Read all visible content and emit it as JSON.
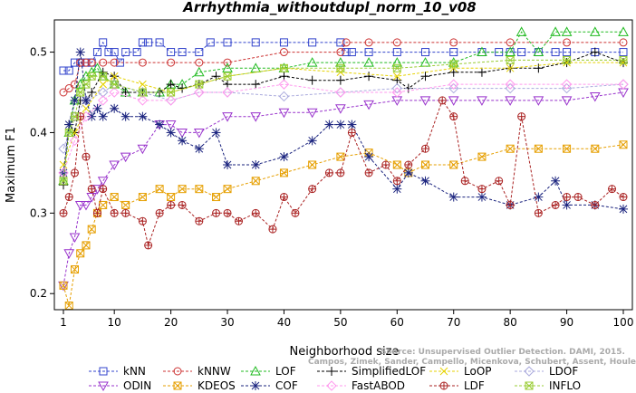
{
  "chart_data": {
    "type": "line",
    "title": "Arrhythmia_withoutdupl_norm_10_v08",
    "xlabel": "Neighborhood size",
    "ylabel": "Maximum F1",
    "xlim": [
      1,
      100
    ],
    "ylim": [
      0.18,
      0.54
    ],
    "xticks": [
      1,
      10,
      20,
      30,
      40,
      50,
      60,
      70,
      80,
      90,
      100
    ],
    "yticks": [
      0.2,
      0.3,
      0.4,
      0.5
    ],
    "ytick_labels": [
      "0.2",
      "0.3",
      "0.4",
      "0.5"
    ],
    "grid": false,
    "legend_position": "bottom",
    "watermark": [
      "Source: Unsupervised Outlier Detection. DAMI, 2015.",
      "Campos, Zimek, Sander, Campello, Micenkova, Schubert, Assent, Houle"
    ],
    "series": [
      {
        "name": "kNN",
        "color": "#3344cc",
        "marker": "square",
        "x": [
          1,
          2,
          3,
          4,
          5,
          6,
          7,
          8,
          9,
          10,
          11,
          12,
          14,
          15,
          16,
          18,
          20,
          22,
          25,
          27,
          30,
          35,
          40,
          45,
          50,
          51,
          52,
          55,
          60,
          65,
          70,
          75,
          78,
          80,
          82,
          85,
          88,
          90,
          95,
          100
        ],
        "y": [
          0.477,
          0.477,
          0.487,
          0.487,
          0.487,
          0.487,
          0.5,
          0.512,
          0.5,
          0.5,
          0.487,
          0.5,
          0.5,
          0.512,
          0.512,
          0.512,
          0.5,
          0.5,
          0.5,
          0.512,
          0.512,
          0.512,
          0.512,
          0.512,
          0.512,
          0.5,
          0.5,
          0.5,
          0.5,
          0.5,
          0.5,
          0.5,
          0.5,
          0.5,
          0.5,
          0.5,
          0.5,
          0.5,
          0.5,
          0.5
        ]
      },
      {
        "name": "kNNW",
        "color": "#cc3333",
        "marker": "circle",
        "x": [
          1,
          2,
          3,
          4,
          5,
          6,
          8,
          10,
          15,
          20,
          25,
          30,
          40,
          50,
          51,
          55,
          60,
          70,
          80,
          90,
          100
        ],
        "y": [
          0.45,
          0.455,
          0.46,
          0.487,
          0.487,
          0.487,
          0.487,
          0.487,
          0.487,
          0.487,
          0.487,
          0.487,
          0.5,
          0.5,
          0.512,
          0.512,
          0.512,
          0.512,
          0.512,
          0.512,
          0.512
        ]
      },
      {
        "name": "LOF",
        "color": "#22bb22",
        "marker": "triangle",
        "x": [
          1,
          2,
          3,
          4,
          5,
          6,
          7,
          8,
          10,
          12,
          15,
          18,
          20,
          22,
          25,
          30,
          35,
          40,
          45,
          50,
          55,
          60,
          65,
          70,
          75,
          80,
          82,
          85,
          88,
          90,
          95,
          100
        ],
        "y": [
          0.34,
          0.4,
          0.44,
          0.46,
          0.47,
          0.475,
          0.48,
          0.47,
          0.46,
          0.45,
          0.45,
          0.45,
          0.46,
          0.46,
          0.475,
          0.48,
          0.48,
          0.48,
          0.487,
          0.487,
          0.487,
          0.487,
          0.487,
          0.487,
          0.5,
          0.5,
          0.525,
          0.5,
          0.525,
          0.525,
          0.525,
          0.525
        ]
      },
      {
        "name": "SimplifiedLOF",
        "color": "#000000",
        "marker": "plus",
        "x": [
          1,
          2,
          3,
          4,
          5,
          6,
          8,
          10,
          12,
          15,
          18,
          20,
          22,
          25,
          28,
          30,
          35,
          40,
          45,
          50,
          55,
          60,
          62,
          65,
          70,
          75,
          80,
          85,
          90,
          95,
          100
        ],
        "y": [
          0.335,
          0.41,
          0.4,
          0.44,
          0.44,
          0.45,
          0.475,
          0.47,
          0.45,
          0.45,
          0.45,
          0.46,
          0.455,
          0.46,
          0.47,
          0.46,
          0.46,
          0.47,
          0.465,
          0.465,
          0.47,
          0.465,
          0.455,
          0.47,
          0.475,
          0.475,
          0.48,
          0.48,
          0.487,
          0.5,
          0.487
        ]
      },
      {
        "name": "LoOP",
        "color": "#e6d200",
        "marker": "x",
        "x": [
          1,
          3,
          5,
          8,
          10,
          15,
          20,
          25,
          30,
          40,
          50,
          60,
          70,
          80,
          90,
          100
        ],
        "y": [
          0.36,
          0.4,
          0.43,
          0.46,
          0.47,
          0.46,
          0.45,
          0.46,
          0.47,
          0.48,
          0.475,
          0.47,
          0.48,
          0.48,
          0.487,
          0.487
        ]
      },
      {
        "name": "LDOF",
        "color": "#aaaadd",
        "marker": "diamond",
        "x": [
          1,
          3,
          5,
          8,
          10,
          15,
          20,
          25,
          30,
          40,
          50,
          60,
          70,
          80,
          90,
          100
        ],
        "y": [
          0.38,
          0.42,
          0.44,
          0.45,
          0.46,
          0.45,
          0.44,
          0.45,
          0.45,
          0.445,
          0.45,
          0.455,
          0.455,
          0.455,
          0.455,
          0.46
        ]
      },
      {
        "name": "ODIN",
        "color": "#9933cc",
        "marker": "triangle-down",
        "x": [
          1,
          2,
          3,
          4,
          5,
          6,
          7,
          8,
          10,
          12,
          15,
          18,
          20,
          22,
          25,
          30,
          35,
          40,
          45,
          50,
          55,
          60,
          65,
          70,
          75,
          80,
          85,
          90,
          95,
          100
        ],
        "y": [
          0.21,
          0.25,
          0.27,
          0.31,
          0.31,
          0.32,
          0.33,
          0.34,
          0.36,
          0.37,
          0.38,
          0.41,
          0.41,
          0.4,
          0.4,
          0.42,
          0.42,
          0.425,
          0.425,
          0.43,
          0.435,
          0.44,
          0.44,
          0.44,
          0.44,
          0.44,
          0.44,
          0.44,
          0.445,
          0.45
        ]
      },
      {
        "name": "KDEOS",
        "color": "#e69f00",
        "marker": "square-x",
        "x": [
          1,
          2,
          3,
          4,
          5,
          6,
          7,
          8,
          10,
          12,
          15,
          18,
          20,
          22,
          25,
          28,
          30,
          35,
          40,
          45,
          50,
          55,
          60,
          62,
          65,
          70,
          75,
          80,
          85,
          90,
          95,
          100
        ],
        "y": [
          0.21,
          0.185,
          0.23,
          0.25,
          0.26,
          0.28,
          0.3,
          0.31,
          0.32,
          0.31,
          0.32,
          0.33,
          0.32,
          0.33,
          0.33,
          0.32,
          0.33,
          0.34,
          0.35,
          0.36,
          0.37,
          0.375,
          0.36,
          0.35,
          0.36,
          0.36,
          0.37,
          0.38,
          0.38,
          0.38,
          0.38,
          0.385
        ]
      },
      {
        "name": "COF",
        "color": "#1a237e",
        "marker": "star",
        "x": [
          1,
          2,
          3,
          4,
          5,
          6,
          7,
          8,
          10,
          12,
          15,
          18,
          20,
          22,
          25,
          28,
          30,
          35,
          40,
          45,
          48,
          50,
          52,
          55,
          60,
          62,
          65,
          70,
          75,
          80,
          85,
          88,
          90,
          95,
          100
        ],
        "y": [
          0.35,
          0.41,
          0.44,
          0.5,
          0.44,
          0.42,
          0.43,
          0.42,
          0.43,
          0.42,
          0.42,
          0.41,
          0.4,
          0.39,
          0.38,
          0.4,
          0.36,
          0.36,
          0.37,
          0.39,
          0.41,
          0.41,
          0.41,
          0.37,
          0.33,
          0.35,
          0.34,
          0.32,
          0.32,
          0.31,
          0.32,
          0.34,
          0.31,
          0.31,
          0.305
        ]
      },
      {
        "name": "FastABOD",
        "color": "#ff99ee",
        "marker": "diamond",
        "x": [
          1,
          3,
          5,
          8,
          10,
          15,
          20,
          25,
          30,
          40,
          50,
          60,
          70,
          80,
          90,
          100
        ],
        "y": [
          0.35,
          0.39,
          0.42,
          0.44,
          0.45,
          0.44,
          0.44,
          0.45,
          0.45,
          0.46,
          0.45,
          0.45,
          0.46,
          0.46,
          0.46,
          0.46
        ]
      },
      {
        "name": "LDF",
        "color": "#aa2222",
        "marker": "circle-plus",
        "x": [
          1,
          2,
          3,
          4,
          5,
          6,
          7,
          8,
          10,
          12,
          15,
          16,
          18,
          20,
          22,
          25,
          28,
          30,
          32,
          35,
          38,
          40,
          42,
          45,
          48,
          50,
          52,
          55,
          58,
          60,
          62,
          65,
          68,
          70,
          72,
          75,
          78,
          80,
          82,
          85,
          88,
          90,
          92,
          95,
          98,
          100
        ],
        "y": [
          0.3,
          0.32,
          0.35,
          0.42,
          0.37,
          0.33,
          0.3,
          0.33,
          0.3,
          0.3,
          0.29,
          0.26,
          0.3,
          0.31,
          0.31,
          0.29,
          0.3,
          0.3,
          0.29,
          0.3,
          0.28,
          0.32,
          0.3,
          0.33,
          0.35,
          0.35,
          0.4,
          0.35,
          0.36,
          0.34,
          0.36,
          0.38,
          0.44,
          0.42,
          0.34,
          0.33,
          0.34,
          0.31,
          0.42,
          0.3,
          0.31,
          0.32,
          0.32,
          0.31,
          0.33,
          0.32
        ]
      },
      {
        "name": "INFLO",
        "color": "#99cc33",
        "marker": "square-star",
        "x": [
          1,
          2,
          3,
          4,
          5,
          6,
          8,
          10,
          15,
          20,
          25,
          30,
          40,
          50,
          60,
          70,
          80,
          90,
          100
        ],
        "y": [
          0.34,
          0.4,
          0.42,
          0.45,
          0.46,
          0.47,
          0.47,
          0.46,
          0.45,
          0.45,
          0.46,
          0.47,
          0.48,
          0.48,
          0.48,
          0.485,
          0.49,
          0.49,
          0.49
        ]
      }
    ]
  }
}
